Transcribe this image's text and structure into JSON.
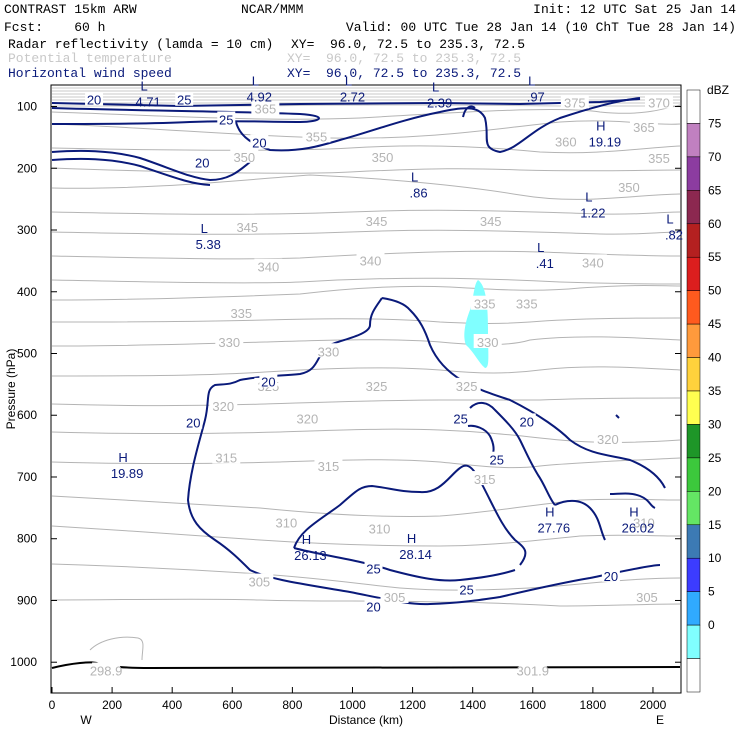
{
  "header": {
    "line1_left": "CONTRAST 15km ARW",
    "line1_center": "NCAR/MMM",
    "line1_right": "Init: 12 UTC Sat 25 Jan 14",
    "line2_left": "Fcst:    60 h",
    "line2_right": "Valid: 00 UTC Tue 28 Jan 14 (10 ChT Tue 28 Jan 14)",
    "fields": [
      {
        "name": "Radar reflectivity (lamda = 10 cm)",
        "xy": "XY=  96.0, 72.5 to 235.3, 72.5",
        "color": "#000000"
      },
      {
        "name": "Potential temperature",
        "xy": "XY=  96.0, 72.5 to 235.3, 72.5",
        "color": "#c8c8c8"
      },
      {
        "name": "Horizontal wind speed",
        "xy": "XY=  96.0, 72.5 to 235.3, 72.5",
        "color": "#0a1a7a"
      }
    ]
  },
  "chart_data": {
    "type": "cross-section contour",
    "xlabel": "Distance (km)",
    "ylabel": "Pressure (hPa)",
    "x_ticks": [
      0,
      200,
      400,
      600,
      800,
      1000,
      1200,
      1400,
      1600,
      1800,
      2000
    ],
    "y_ticks": [
      100,
      200,
      300,
      400,
      500,
      600,
      700,
      800,
      900,
      1000
    ],
    "xlim": [
      0,
      2090
    ],
    "ylim_top_to_bottom": [
      70,
      1045
    ],
    "endpoint_labels": {
      "left": "W",
      "right": "E"
    },
    "colorbar": {
      "unit": "dBZ",
      "labels": [
        "75",
        "70",
        "65",
        "60",
        "55",
        "50",
        "45",
        "40",
        "35",
        "30",
        "25",
        "20",
        "15",
        "10",
        "5",
        "0"
      ],
      "colors": [
        "#ffffff",
        "#c080c0",
        "#8c3ca0",
        "#8c2850",
        "#b42020",
        "#dc1e1e",
        "#ff5a1e",
        "#ff9a3c",
        "#ffd23c",
        "#ffff50",
        "#1e9628",
        "#3cc83c",
        "#64e664",
        "#3c7ab4",
        "#3c3cff",
        "#30aaff",
        "#80ffff",
        "#ffffff"
      ]
    },
    "theta_contour_labels": [
      {
        "text": "370",
        "x": 2020,
        "p": 95
      },
      {
        "text": "375",
        "x": 1740,
        "p": 95
      },
      {
        "text": "365",
        "x": 1970,
        "p": 135
      },
      {
        "text": "365",
        "x": 710,
        "p": 105
      },
      {
        "text": "360",
        "x": 1710,
        "p": 158
      },
      {
        "text": "355",
        "x": 880,
        "p": 150
      },
      {
        "text": "355",
        "x": 2020,
        "p": 185
      },
      {
        "text": "350",
        "x": 640,
        "p": 183
      },
      {
        "text": "350",
        "x": 1100,
        "p": 183
      },
      {
        "text": "350",
        "x": 1920,
        "p": 232
      },
      {
        "text": "345",
        "x": 650,
        "p": 297
      },
      {
        "text": "345",
        "x": 1080,
        "p": 287
      },
      {
        "text": "345",
        "x": 1460,
        "p": 287
      },
      {
        "text": "340",
        "x": 720,
        "p": 361
      },
      {
        "text": "340",
        "x": 1060,
        "p": 351
      },
      {
        "text": "340",
        "x": 1800,
        "p": 354
      },
      {
        "text": "335",
        "x": 630,
        "p": 436
      },
      {
        "text": "335",
        "x": 1440,
        "p": 421
      },
      {
        "text": "335",
        "x": 1580,
        "p": 421
      },
      {
        "text": "330",
        "x": 590,
        "p": 483
      },
      {
        "text": "330",
        "x": 920,
        "p": 498
      },
      {
        "text": "330",
        "x": 1450,
        "p": 483
      },
      {
        "text": "325",
        "x": 720,
        "p": 554
      },
      {
        "text": "325",
        "x": 1080,
        "p": 554
      },
      {
        "text": "325",
        "x": 1380,
        "p": 554
      },
      {
        "text": "320",
        "x": 570,
        "p": 587
      },
      {
        "text": "320",
        "x": 850,
        "p": 607
      },
      {
        "text": "320",
        "x": 1850,
        "p": 640
      },
      {
        "text": "315",
        "x": 580,
        "p": 670
      },
      {
        "text": "315",
        "x": 920,
        "p": 684
      },
      {
        "text": "315",
        "x": 1440,
        "p": 705
      },
      {
        "text": "310",
        "x": 780,
        "p": 775
      },
      {
        "text": "310",
        "x": 1090,
        "p": 785
      },
      {
        "text": "310",
        "x": 1970,
        "p": 775
      },
      {
        "text": "305",
        "x": 690,
        "p": 871
      },
      {
        "text": "305",
        "x": 1140,
        "p": 896
      },
      {
        "text": "305",
        "x": 1980,
        "p": 896
      },
      {
        "text": "298.9",
        "x": 180,
        "p": 1015
      },
      {
        "text": "301.9",
        "x": 1600,
        "p": 1015
      }
    ],
    "wind_contour_labels": [
      {
        "text": "20",
        "x": 140,
        "p": 89
      },
      {
        "text": "25",
        "x": 440,
        "p": 89
      },
      {
        "text": "25",
        "x": 580,
        "p": 121
      },
      {
        "text": "20",
        "x": 690,
        "p": 158
      },
      {
        "text": "20",
        "x": 500,
        "p": 191
      },
      {
        "text": "20",
        "x": 720,
        "p": 545
      },
      {
        "text": "20",
        "x": 470,
        "p": 612
      },
      {
        "text": "25",
        "x": 1360,
        "p": 605
      },
      {
        "text": "20",
        "x": 1580,
        "p": 610
      },
      {
        "text": "25",
        "x": 1480,
        "p": 672
      },
      {
        "text": "25",
        "x": 1070,
        "p": 848
      },
      {
        "text": "25",
        "x": 1380,
        "p": 882
      },
      {
        "text": "20",
        "x": 1070,
        "p": 910
      },
      {
        "text": "20",
        "x": 1860,
        "p": 860
      }
    ],
    "extrema": [
      {
        "type": "L",
        "value": "4.71",
        "x": 320,
        "p": 90
      },
      {
        "type": "L",
        "value": "4.92",
        "x": 690,
        "p": 82
      },
      {
        "type": "L",
        "value": "2.72",
        "x": 1000,
        "p": 82
      },
      {
        "type": "L",
        "value": "2.39",
        "x": 1290,
        "p": 92
      },
      {
        "type": "L",
        "value": ".97",
        "x": 1610,
        "p": 82
      },
      {
        "type": "H",
        "value": "19.19",
        "x": 1840,
        "p": 155
      },
      {
        "type": "L",
        "value": ".86",
        "x": 1220,
        "p": 238
      },
      {
        "type": "L",
        "value": "1.22",
        "x": 1800,
        "p": 270
      },
      {
        "type": "L",
        "value": ".82",
        "x": 2070,
        "p": 306
      },
      {
        "type": "L",
        "value": "5.38",
        "x": 520,
        "p": 321
      },
      {
        "type": "L",
        "value": ".41",
        "x": 1640,
        "p": 352
      },
      {
        "type": "H",
        "value": "19.89",
        "x": 250,
        "p": 692
      },
      {
        "type": "H",
        "value": "27.76",
        "x": 1670,
        "p": 780
      },
      {
        "type": "H",
        "value": "26.02",
        "x": 1950,
        "p": 780
      },
      {
        "type": "H",
        "value": "26.13",
        "x": 860,
        "p": 825
      },
      {
        "type": "H",
        "value": "28.14",
        "x": 1210,
        "p": 823
      }
    ]
  }
}
